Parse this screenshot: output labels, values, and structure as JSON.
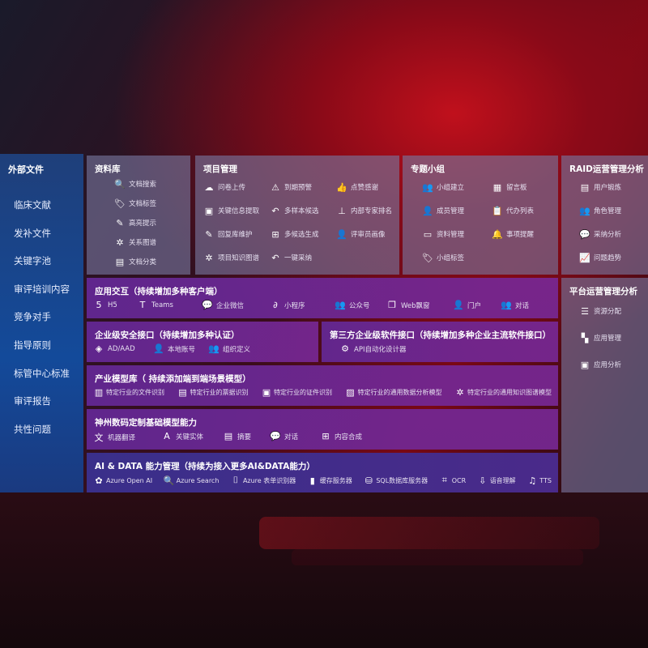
{
  "sidebar": {
    "title": "外部文件",
    "items": [
      "临床文献",
      "发补文件",
      "关键字池",
      "审评培训内容",
      "竞争对手",
      "指导原则",
      "标管中心标准",
      "审评报告",
      "共性问题"
    ]
  },
  "library": {
    "title": "资料库",
    "items": [
      {
        "icon": "document-search-icon",
        "glyph": "🔍",
        "label": "文档搜索"
      },
      {
        "icon": "tag-icon",
        "glyph": "🏷",
        "label": "文档标签"
      },
      {
        "icon": "pen-icon",
        "glyph": "✎",
        "label": "高亮提示"
      },
      {
        "icon": "network-icon",
        "glyph": "✲",
        "label": "关系图谱"
      },
      {
        "icon": "document-classify-icon",
        "glyph": "▤",
        "label": "文档分类"
      }
    ]
  },
  "project": {
    "title": "项目管理",
    "items": [
      {
        "icon": "cloud-upload-icon",
        "glyph": "☁",
        "label": "问卷上传"
      },
      {
        "icon": "alarm-icon",
        "glyph": "⚠",
        "label": "到期预警"
      },
      {
        "icon": "thumbs-up-icon",
        "glyph": "👍",
        "label": "点赞感谢"
      },
      {
        "icon": "window-icon",
        "glyph": "▣",
        "label": "关键信息提取"
      },
      {
        "icon": "reply-icon",
        "glyph": "↶",
        "label": "多样本候选"
      },
      {
        "icon": "ranking-icon",
        "glyph": "⊥",
        "label": "内部专家排名"
      },
      {
        "icon": "edit-icon",
        "glyph": "✎",
        "label": "回复库维护"
      },
      {
        "icon": "puzzle-icon",
        "glyph": "⊞",
        "label": "多候选生成"
      },
      {
        "icon": "person-icon",
        "glyph": "👤",
        "label": "评审员画像"
      },
      {
        "icon": "knowledge-graph-icon",
        "glyph": "✲",
        "label": "项目知识图谱"
      },
      {
        "icon": "reply-icon",
        "glyph": "↶",
        "label": "一键采纳"
      }
    ]
  },
  "group": {
    "title": "专题小组",
    "items": [
      {
        "icon": "group-icon",
        "glyph": "👥",
        "label": "小组建立"
      },
      {
        "icon": "bbs-icon",
        "glyph": "▦",
        "label": "留言板"
      },
      {
        "icon": "member-add-icon",
        "glyph": "👤",
        "label": "成员管理"
      },
      {
        "icon": "clipboard-icon",
        "glyph": "📋",
        "label": "代办列表"
      },
      {
        "icon": "folder-icon",
        "glyph": "▭",
        "label": "资料管理"
      },
      {
        "icon": "bell-icon",
        "glyph": "🔔",
        "label": "事项提醒"
      },
      {
        "icon": "tag-icon",
        "glyph": "🏷",
        "label": "小组标签"
      }
    ]
  },
  "raid": {
    "title": "RAID运营管理分析",
    "items": [
      {
        "icon": "id-card-icon",
        "glyph": "▤",
        "label": "用户锻炼"
      },
      {
        "icon": "users-icon",
        "glyph": "👥",
        "label": "角色管理"
      },
      {
        "icon": "qa-icon",
        "glyph": "💬",
        "label": "采纳分析"
      },
      {
        "icon": "trend-icon",
        "glyph": "📈",
        "label": "问题趋势"
      }
    ]
  },
  "platform": {
    "title": "平台运营管理分析",
    "items": [
      {
        "icon": "checklist-icon",
        "glyph": "☰",
        "label": "资源分配"
      },
      {
        "icon": "apps-icon",
        "glyph": "▚",
        "label": "应用管理"
      },
      {
        "icon": "analytics-icon",
        "glyph": "▣",
        "label": "应用分析"
      }
    ]
  },
  "interaction": {
    "title": "应用交互（持续增加多种客户端）",
    "items": [
      {
        "icon": "html5-icon",
        "glyph": "5",
        "label": "H5"
      },
      {
        "icon": "teams-icon",
        "glyph": "T",
        "label": "Teams"
      },
      {
        "icon": "wechat-work-icon",
        "glyph": "💬",
        "label": "企业微信"
      },
      {
        "icon": "mini-program-icon",
        "glyph": "∂",
        "label": "小程序"
      },
      {
        "icon": "public-account-icon",
        "glyph": "👥",
        "label": "公众号"
      },
      {
        "icon": "web-window-icon",
        "glyph": "❐",
        "label": "Web飘窗"
      },
      {
        "icon": "portal-icon",
        "glyph": "👤",
        "label": "门户"
      },
      {
        "icon": "chat-users-icon",
        "glyph": "👥",
        "label": "对话"
      }
    ]
  },
  "security": {
    "title": "企业级安全接口（持续增加多种认证）",
    "items": [
      {
        "icon": "ad-icon",
        "glyph": "◈",
        "label": "AD/AAD"
      },
      {
        "icon": "local-account-icon",
        "glyph": "👤",
        "label": "本地账号"
      },
      {
        "icon": "org-icon",
        "glyph": "👥",
        "label": "组织定义"
      }
    ]
  },
  "thirdparty": {
    "title": "第三方企业级软件接口（持续增加多种企业主流软件接口）",
    "items": [
      {
        "icon": "gear-icon",
        "glyph": "⚙",
        "label": "API自动化设计器"
      }
    ]
  },
  "industry": {
    "title": "产业模型库（ 持续添加端到端场景模型）",
    "items": [
      {
        "icon": "file-icon",
        "glyph": "▥",
        "label": "特定行业的文件识别"
      },
      {
        "icon": "receipt-icon",
        "glyph": "▤",
        "label": "特定行业的票据识别"
      },
      {
        "icon": "id-card-icon",
        "glyph": "▣",
        "label": "特定行业的证件识别"
      },
      {
        "icon": "chart-icon",
        "glyph": "▨",
        "label": "特定行业的通用数据分析模型"
      },
      {
        "icon": "knowledge-graph-icon",
        "glyph": "✲",
        "label": "特定行业的通用知识图谱模型"
      }
    ]
  },
  "base": {
    "title": "神州数码定制基础模型能力",
    "items": [
      {
        "icon": "translate-icon",
        "glyph": "文",
        "label": "机器翻译"
      },
      {
        "icon": "entity-icon",
        "glyph": "A",
        "label": "关键实体"
      },
      {
        "icon": "summary-icon",
        "glyph": "▤",
        "label": "摘要"
      },
      {
        "icon": "chat-icon",
        "glyph": "💬",
        "label": "对话"
      },
      {
        "icon": "compose-icon",
        "glyph": "⊞",
        "label": "内容合成"
      }
    ]
  },
  "aidata": {
    "title": "AI & DATA 能力管理（持续为接入更多AI&DATA能力）",
    "items": [
      {
        "icon": "openai-icon",
        "glyph": "✿",
        "label": "Azure Open AI"
      },
      {
        "icon": "search-icon",
        "glyph": "🔍",
        "label": "Azure Search"
      },
      {
        "icon": "form-recognizer-icon",
        "glyph": "⌷",
        "label": "Azure 表单识别器"
      },
      {
        "icon": "cache-icon",
        "glyph": "▮",
        "label": "缓存服务器"
      },
      {
        "icon": "database-icon",
        "glyph": "⛁",
        "label": "SQL数据库服务器"
      },
      {
        "icon": "ocr-icon",
        "glyph": "⌗",
        "label": "OCR"
      },
      {
        "icon": "speech-icon",
        "glyph": "⇩",
        "label": "语音理解"
      },
      {
        "icon": "tts-icon",
        "glyph": "♫",
        "label": "TTS"
      }
    ]
  }
}
